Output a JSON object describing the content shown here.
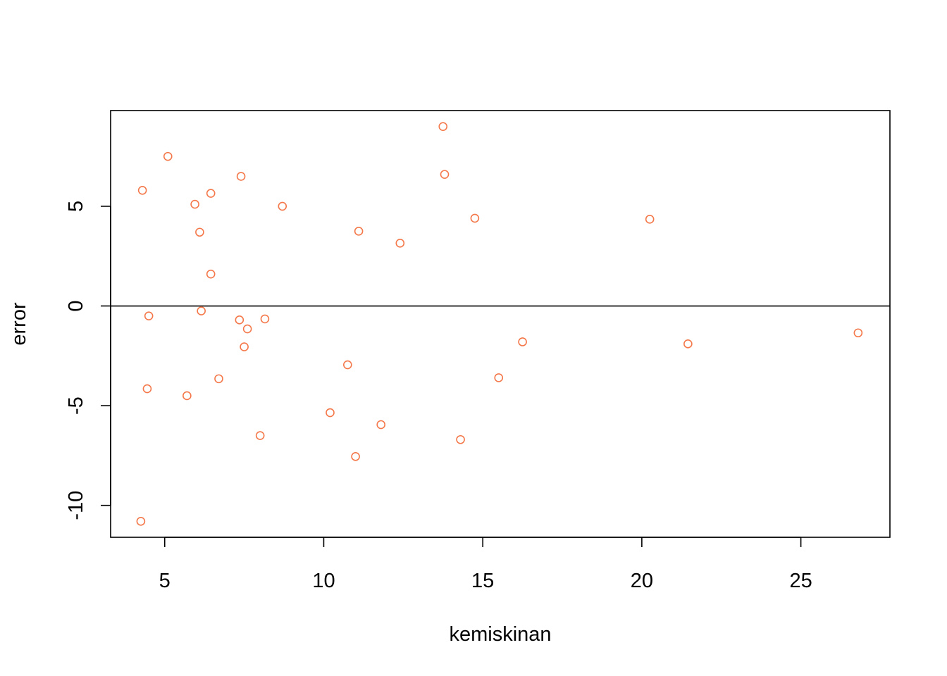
{
  "chart_data": {
    "type": "scatter",
    "title": "",
    "xlabel": "kemiskinan",
    "ylabel": "error",
    "xlim": [
      3.3,
      27.8
    ],
    "ylim": [
      -11.6,
      9.8
    ],
    "x_ticks": [
      5,
      10,
      15,
      20,
      25
    ],
    "x_tick_labels": [
      "5",
      "10",
      "15",
      "20",
      "25"
    ],
    "y_ticks": [
      -10,
      -5,
      0,
      5
    ],
    "y_tick_labels": [
      "-10",
      "-5",
      "0",
      "5"
    ],
    "reference_line": {
      "y": 0,
      "color": "#000000"
    },
    "grid": false,
    "legend": "none",
    "point_color": "#F4784A",
    "points": [
      {
        "x": 13.75,
        "y": 9.0
      },
      {
        "x": 5.1,
        "y": 7.5
      },
      {
        "x": 7.4,
        "y": 6.5
      },
      {
        "x": 13.8,
        "y": 6.6
      },
      {
        "x": 4.3,
        "y": 5.8
      },
      {
        "x": 6.45,
        "y": 5.65
      },
      {
        "x": 5.95,
        "y": 5.1
      },
      {
        "x": 8.7,
        "y": 5.0
      },
      {
        "x": 14.75,
        "y": 4.4
      },
      {
        "x": 20.25,
        "y": 4.35
      },
      {
        "x": 6.1,
        "y": 3.7
      },
      {
        "x": 11.1,
        "y": 3.75
      },
      {
        "x": 12.4,
        "y": 3.15
      },
      {
        "x": 6.45,
        "y": 1.6
      },
      {
        "x": 6.15,
        "y": -0.25
      },
      {
        "x": 4.5,
        "y": -0.5
      },
      {
        "x": 7.35,
        "y": -0.7
      },
      {
        "x": 8.15,
        "y": -0.65
      },
      {
        "x": 7.6,
        "y": -1.15
      },
      {
        "x": 26.8,
        "y": -1.35
      },
      {
        "x": 16.25,
        "y": -1.8
      },
      {
        "x": 21.45,
        "y": -1.9
      },
      {
        "x": 7.5,
        "y": -2.05
      },
      {
        "x": 10.75,
        "y": -2.95
      },
      {
        "x": 15.5,
        "y": -3.6
      },
      {
        "x": 6.7,
        "y": -3.65
      },
      {
        "x": 4.45,
        "y": -4.15
      },
      {
        "x": 5.7,
        "y": -4.5
      },
      {
        "x": 10.2,
        "y": -5.35
      },
      {
        "x": 11.8,
        "y": -5.95
      },
      {
        "x": 8.0,
        "y": -6.5
      },
      {
        "x": 14.3,
        "y": -6.7
      },
      {
        "x": 11.0,
        "y": -7.55
      },
      {
        "x": 4.25,
        "y": -10.8
      }
    ]
  }
}
